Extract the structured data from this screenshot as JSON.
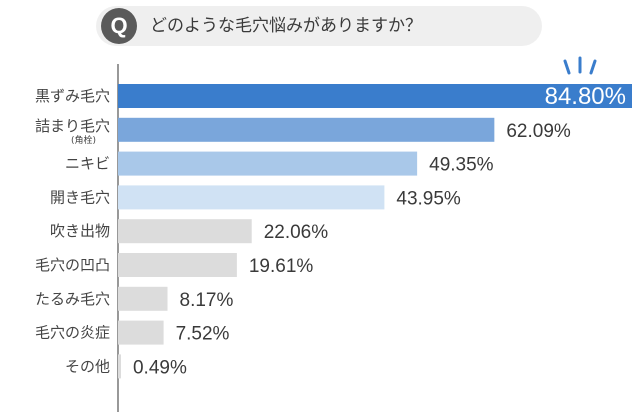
{
  "question": {
    "badge": "Q",
    "text": "どのような毛穴悩みがありますか？"
  },
  "chart_data": {
    "type": "bar",
    "orientation": "horizontal",
    "categories": [
      "黒ずみ毛穴",
      "詰まり毛穴",
      "ニキビ",
      "開き毛穴",
      "吹き出物",
      "毛穴の凹凸",
      "たるみ毛穴",
      "毛穴の炎症",
      "その他"
    ],
    "category_notes": [
      "",
      "(角栓)",
      "",
      "",
      "",
      "",
      "",
      "",
      ""
    ],
    "values": [
      84.8,
      62.09,
      49.35,
      43.95,
      22.06,
      19.61,
      8.17,
      7.52,
      0.49
    ],
    "value_labels": [
      "84.80%",
      "62.09%",
      "49.35%",
      "43.95%",
      "22.06%",
      "19.61%",
      "8.17%",
      "7.52%",
      "0.49%"
    ],
    "colors": [
      "#3a7dcc",
      "#7aa6db",
      "#a9c8e9",
      "#d0e2f4",
      "#dcdcdc",
      "#dcdcdc",
      "#dcdcdc",
      "#dcdcdc",
      "#dcdcdc"
    ],
    "highlight_color": "#3a7dcc",
    "xlim": [
      0,
      84.8
    ],
    "title": "",
    "xlabel": "",
    "ylabel": "",
    "grid": false,
    "legend": "none"
  }
}
